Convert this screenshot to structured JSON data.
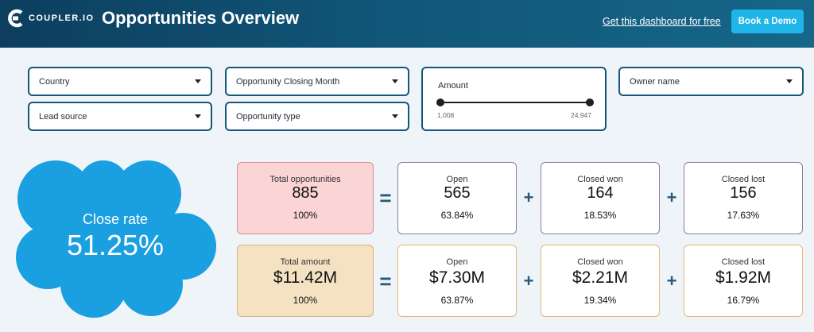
{
  "header": {
    "logo_text": "COUPLER.IO",
    "title": "Opportunities Overview",
    "get_link": "Get this dashboard for free",
    "demo_button": "Book a Demo"
  },
  "filters": {
    "country": "Country",
    "closing_month": "Opportunity Closing Month",
    "lead_source": "Lead source",
    "opportunity_type": "Opportunity type",
    "owner_name": "Owner name",
    "amount": {
      "label": "Amount",
      "min": "1,008",
      "max": "24,947"
    }
  },
  "close_rate": {
    "label": "Close rate",
    "value": "51.25%"
  },
  "opportunities": {
    "total": {
      "label": "Total opportunities",
      "value": "885",
      "pct": "100%"
    },
    "open": {
      "label": "Open",
      "value": "565",
      "pct": "63.84%"
    },
    "won": {
      "label": "Closed won",
      "value": "164",
      "pct": "18.53%"
    },
    "lost": {
      "label": "Closed lost",
      "value": "156",
      "pct": "17.63%"
    }
  },
  "amounts": {
    "total": {
      "label": "Total amount",
      "value": "$11.42M",
      "pct": "100%"
    },
    "open": {
      "label": "Open",
      "value": "$7.30M",
      "pct": "63.87%"
    },
    "won": {
      "label": "Closed won",
      "value": "$2.21M",
      "pct": "19.34%"
    },
    "lost": {
      "label": "Closed lost",
      "value": "$1.92M",
      "pct": "16.79%"
    }
  },
  "operators": {
    "equals": "=",
    "plus": "+"
  },
  "colors": {
    "header_dark": "#0d3e5e",
    "accent": "#1fb5e8",
    "cloud": "#1a9fe0",
    "total_opps_bg": "#fbd4d6",
    "total_amount_bg": "#f5e2c3"
  }
}
